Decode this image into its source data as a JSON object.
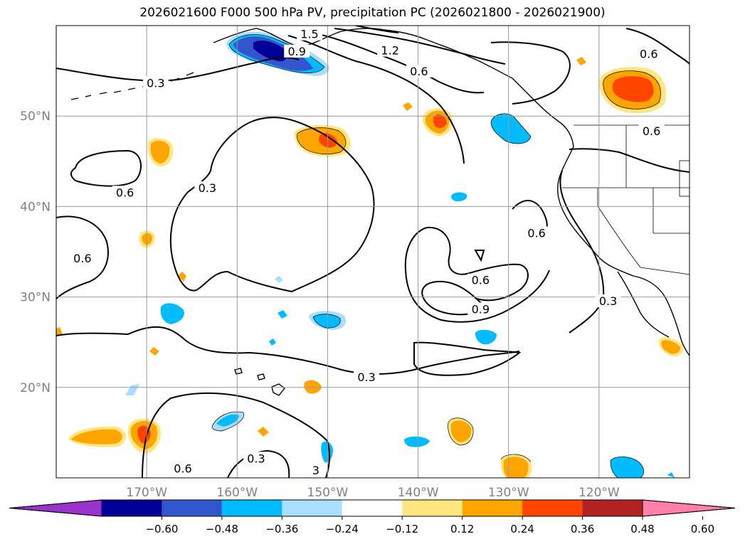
{
  "chart_data": {
    "type": "contour-map",
    "title": "2026021600 F000 500 hPa PV, precipitation PC (2026021800 - 2026021900)",
    "xlabel": "",
    "ylabel": "",
    "lon_range": [
      180,
      110
    ],
    "lat_range": [
      10,
      60
    ],
    "x_ticks": [
      {
        "lon": 170,
        "label": "170°W"
      },
      {
        "lon": 160,
        "label": "160°W"
      },
      {
        "lon": 150,
        "label": "150°W"
      },
      {
        "lon": 140,
        "label": "140°W"
      },
      {
        "lon": 130,
        "label": "130°W"
      },
      {
        "lon": 120,
        "label": "120°W"
      }
    ],
    "y_ticks": [
      {
        "lat": 50,
        "label": "50°N"
      },
      {
        "lat": 40,
        "label": "40°N"
      },
      {
        "lat": 30,
        "label": "30°N"
      },
      {
        "lat": 20,
        "label": "20°N"
      }
    ],
    "grid": true,
    "colorbar": {
      "levels": [
        -0.6,
        -0.48,
        -0.36,
        -0.24,
        -0.12,
        0.12,
        0.24,
        0.36,
        0.48,
        0.6
      ],
      "tick_labels": [
        "−0.60",
        "−0.48",
        "−0.36",
        "−0.24",
        "−0.12",
        "0.12",
        "0.24",
        "0.36",
        "0.48",
        "0.60"
      ],
      "colors": [
        "#9933cc",
        "#000099",
        "#3355cc",
        "#00bbff",
        "#aaddff",
        "#ffffff",
        "#ffe680",
        "#ffa500",
        "#ff4400",
        "#b22222",
        "#ff80aa"
      ],
      "extend": "both"
    },
    "pv_contour_labels": [
      {
        "text": "1.5",
        "lon": 152.0,
        "lat": 59.0
      },
      {
        "text": "0.9",
        "lon": 153.4,
        "lat": 57.1
      },
      {
        "text": "1.2",
        "lon": 143.1,
        "lat": 57.2
      },
      {
        "text": "0.6",
        "lon": 139.9,
        "lat": 54.9
      },
      {
        "text": "0.6",
        "lon": 114.5,
        "lat": 56.8
      },
      {
        "text": "0.3",
        "lon": 169.0,
        "lat": 53.6
      },
      {
        "text": "0.6",
        "lon": 172.4,
        "lat": 41.5
      },
      {
        "text": "0.3",
        "lon": 163.3,
        "lat": 42.0
      },
      {
        "text": "0.6",
        "lon": 177.1,
        "lat": 34.2
      },
      {
        "text": "0.6",
        "lon": 126.9,
        "lat": 37.0
      },
      {
        "text": "0.6",
        "lon": 133.1,
        "lat": 31.8
      },
      {
        "text": "0.9",
        "lon": 133.1,
        "lat": 28.6
      },
      {
        "text": "0.3",
        "lon": 119.0,
        "lat": 29.5
      },
      {
        "text": "0.6",
        "lon": 114.2,
        "lat": 48.3
      },
      {
        "text": "0.3",
        "lon": 145.7,
        "lat": 21.1
      },
      {
        "text": "0.3",
        "lon": 157.9,
        "lat": 12.1
      },
      {
        "text": "0.6",
        "lon": 166.0,
        "lat": 11.0
      },
      {
        "text": "3",
        "lon": 151.3,
        "lat": 10.8
      }
    ]
  }
}
